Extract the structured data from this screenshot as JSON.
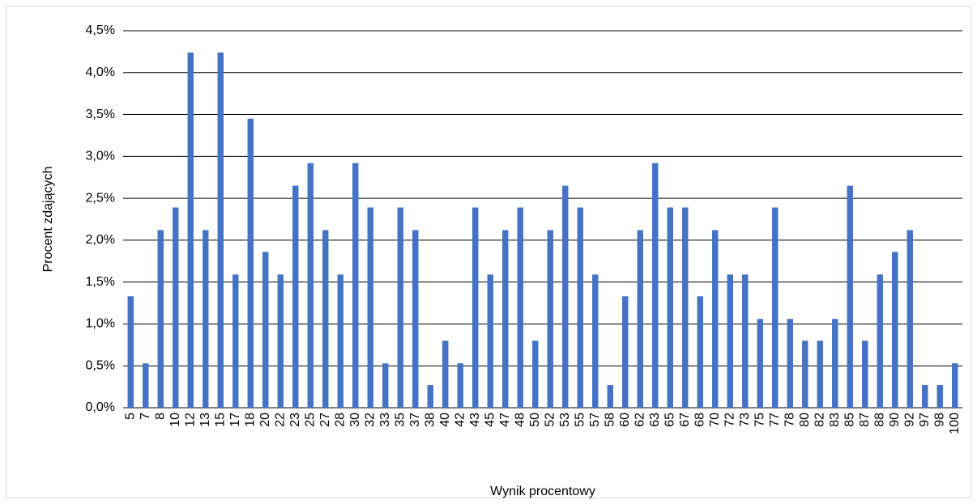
{
  "chart_data": {
    "type": "bar",
    "x_label": "Wynik procentowy",
    "y_label": "Procent zdających",
    "categories": [
      "5",
      "7",
      "8",
      "10",
      "12",
      "13",
      "15",
      "17",
      "18",
      "20",
      "22",
      "23",
      "25",
      "27",
      "28",
      "30",
      "32",
      "33",
      "35",
      "37",
      "38",
      "40",
      "42",
      "43",
      "45",
      "47",
      "48",
      "50",
      "52",
      "53",
      "55",
      "57",
      "58",
      "60",
      "62",
      "63",
      "65",
      "67",
      "68",
      "70",
      "72",
      "73",
      "75",
      "77",
      "78",
      "80",
      "82",
      "83",
      "85",
      "87",
      "88",
      "90",
      "92",
      "97",
      "98",
      "100"
    ],
    "values": [
      1.33,
      0.53,
      2.12,
      2.39,
      4.24,
      2.12,
      4.24,
      1.59,
      3.45,
      1.86,
      1.59,
      2.65,
      2.92,
      2.12,
      1.59,
      2.92,
      2.39,
      0.53,
      2.39,
      2.12,
      0.27,
      0.8,
      0.53,
      2.39,
      1.59,
      2.12,
      2.39,
      0.8,
      2.12,
      2.65,
      2.39,
      1.59,
      0.27,
      1.33,
      2.12,
      2.92,
      2.39,
      2.39,
      1.33,
      2.12,
      1.59,
      1.59,
      1.06,
      2.39,
      1.06,
      0.8,
      0.8,
      1.06,
      2.65,
      0.8,
      1.59,
      1.86,
      2.12,
      0.27,
      0.27,
      0.53
    ],
    "color": "#4472c4",
    "ylim": [
      0,
      4.5
    ],
    "yticks": [
      {
        "value": 0,
        "label": "0,0%"
      },
      {
        "value": 0.5,
        "label": "0,5%"
      },
      {
        "value": 1,
        "label": "1,0%"
      },
      {
        "value": 1.5,
        "label": "1,5%"
      },
      {
        "value": 2,
        "label": "2,0%"
      },
      {
        "value": 2.5,
        "label": "2,5%"
      },
      {
        "value": 3,
        "label": "3,0%"
      },
      {
        "value": 3.5,
        "label": "3,5%"
      },
      {
        "value": 4,
        "label": "4,0%"
      },
      {
        "value": 4.5,
        "label": "4,5%"
      }
    ],
    "grid": true
  }
}
